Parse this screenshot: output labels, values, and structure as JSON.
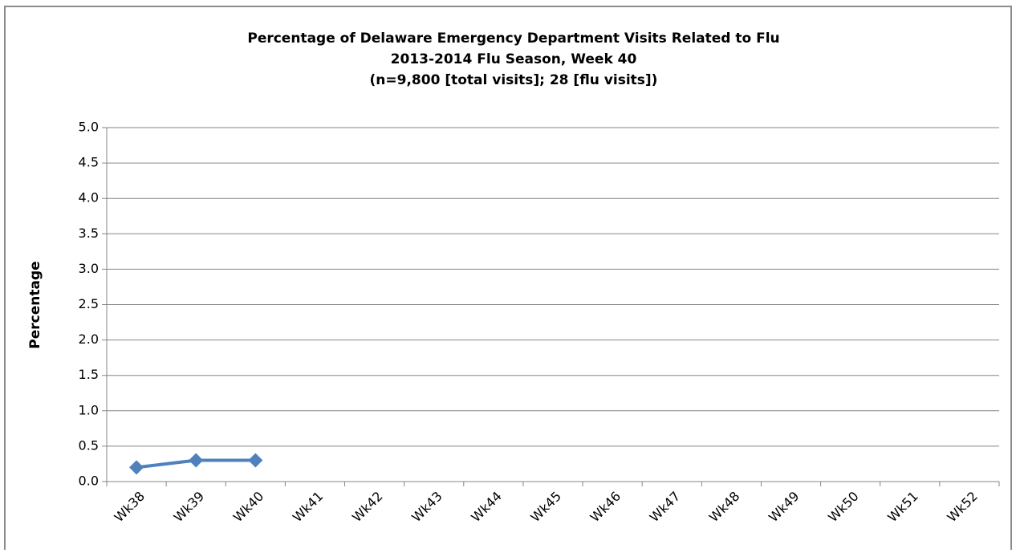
{
  "chart_data": {
    "type": "line",
    "title": "Percentage of Delaware Emergency Department Visits Related to Flu",
    "subtitle": [
      "2013-2014 Flu Season, Week 40",
      "(n=9,800 [total visits]; 28 [flu visits])"
    ],
    "y_label": "Percentage",
    "categories": [
      "Wk38",
      "Wk39",
      "Wk40",
      "Wk41",
      "Wk42",
      "Wk43",
      "Wk44",
      "Wk45",
      "Wk46",
      "Wk47",
      "Wk48",
      "Wk49",
      "Wk50",
      "Wk51",
      "Wk52"
    ],
    "series": [
      {
        "name": "Percentage",
        "color": "#4f81bd",
        "values": [
          0.2,
          0.3,
          0.3,
          null,
          null,
          null,
          null,
          null,
          null,
          null,
          null,
          null,
          null,
          null,
          null
        ]
      }
    ],
    "ylim": [
      0,
      5
    ],
    "yticks": [
      {
        "value": 0,
        "label": "0.0"
      },
      0.5,
      {
        "value": 1,
        "label": "1.0"
      },
      1.5,
      {
        "value": 2,
        "label": "2.0"
      },
      2.5,
      {
        "value": 3,
        "label": "3.0"
      },
      3.5,
      {
        "value": 4,
        "label": "4.0"
      },
      4.5,
      {
        "value": 5,
        "label": "5.0"
      }
    ],
    "grid": true
  }
}
